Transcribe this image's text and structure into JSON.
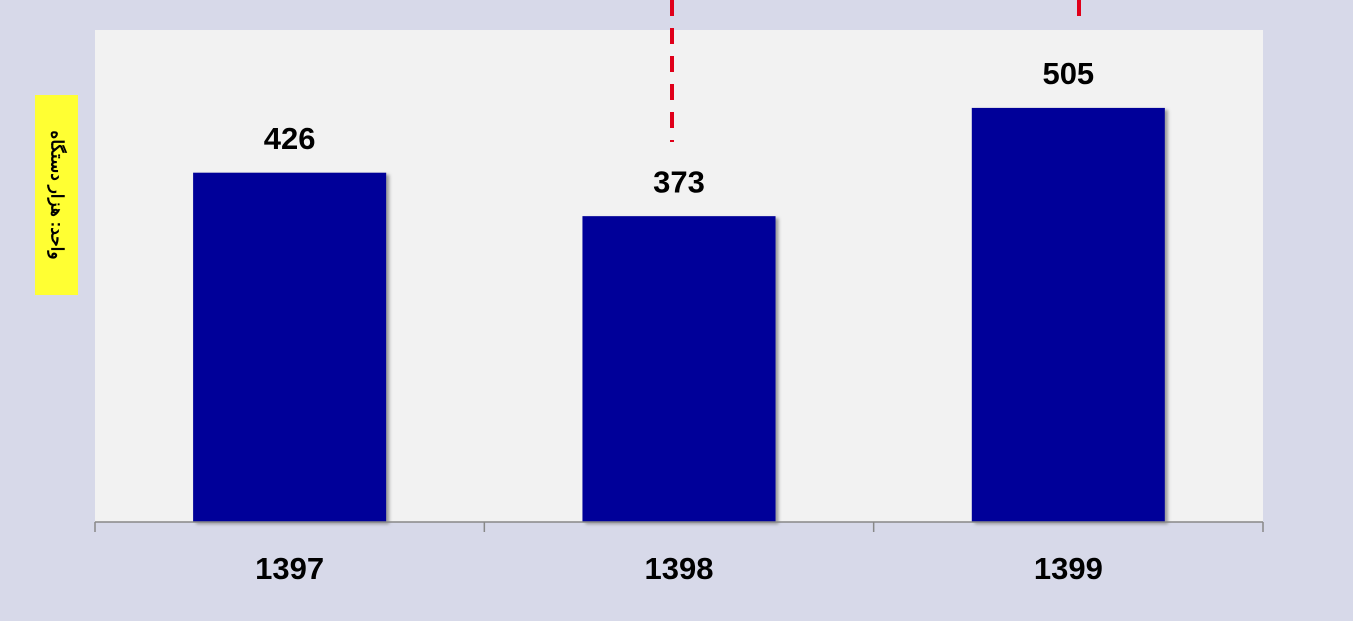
{
  "chart_data": {
    "type": "bar",
    "y_label": "واحد: هزار دستگاه",
    "categories": [
      "1397",
      "1398",
      "1399"
    ],
    "values": [
      426,
      373,
      505
    ],
    "color": "#000099",
    "ylim": [
      0,
      600
    ]
  }
}
